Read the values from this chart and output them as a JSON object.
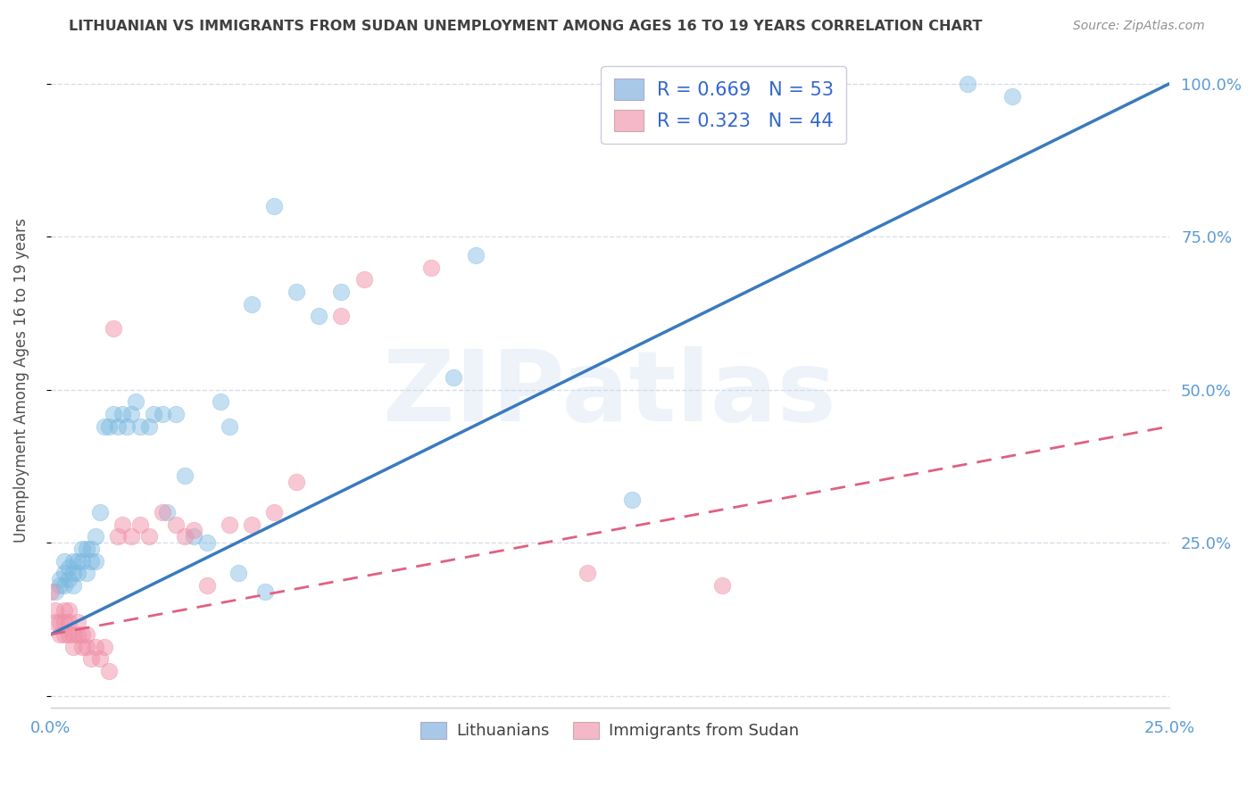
{
  "title": "LITHUANIAN VS IMMIGRANTS FROM SUDAN UNEMPLOYMENT AMONG AGES 16 TO 19 YEARS CORRELATION CHART",
  "source": "Source: ZipAtlas.com",
  "ylabel": "Unemployment Among Ages 16 to 19 years",
  "watermark": "ZIPatlas",
  "xlim": [
    0.0,
    0.25
  ],
  "ylim": [
    -0.02,
    1.05
  ],
  "xticks": [
    0.0,
    0.05,
    0.1,
    0.15,
    0.2,
    0.25
  ],
  "xticklabels": [
    "0.0%",
    "",
    "",
    "",
    "",
    "25.0%"
  ],
  "yticks": [
    0.0,
    0.25,
    0.5,
    0.75,
    1.0
  ],
  "yticklabels_right": [
    "",
    "25.0%",
    "50.0%",
    "75.0%",
    "100.0%"
  ],
  "legend1_label": "R = 0.669   N = 53",
  "legend2_label": "R = 0.323   N = 44",
  "blue_fill_color": "#a8c8e8",
  "pink_fill_color": "#f4b8c8",
  "blue_scatter_color": "#7ab8e0",
  "pink_scatter_color": "#f090a8",
  "trendline_blue": "#3a7abf",
  "trendline_pink": "#e06080",
  "legend_text_color": "#3366cc",
  "axis_color": "#5b9bd5",
  "grid_color": "#d8dde8",
  "title_color": "#404040",
  "source_color": "#909090",
  "right_tick_color": "#5b9bd5",
  "blue_scatter_x": [
    0.001,
    0.002,
    0.002,
    0.003,
    0.003,
    0.003,
    0.004,
    0.004,
    0.005,
    0.005,
    0.005,
    0.006,
    0.006,
    0.007,
    0.007,
    0.008,
    0.008,
    0.009,
    0.009,
    0.01,
    0.01,
    0.011,
    0.012,
    0.013,
    0.014,
    0.015,
    0.016,
    0.017,
    0.018,
    0.019,
    0.02,
    0.022,
    0.023,
    0.025,
    0.026,
    0.028,
    0.03,
    0.032,
    0.035,
    0.038,
    0.04,
    0.042,
    0.045,
    0.048,
    0.05,
    0.055,
    0.06,
    0.065,
    0.09,
    0.095,
    0.13,
    0.205,
    0.215
  ],
  "blue_scatter_y": [
    0.17,
    0.18,
    0.19,
    0.18,
    0.2,
    0.22,
    0.19,
    0.21,
    0.18,
    0.2,
    0.22,
    0.2,
    0.22,
    0.22,
    0.24,
    0.2,
    0.24,
    0.22,
    0.24,
    0.22,
    0.26,
    0.3,
    0.44,
    0.44,
    0.46,
    0.44,
    0.46,
    0.44,
    0.46,
    0.48,
    0.44,
    0.44,
    0.46,
    0.46,
    0.3,
    0.46,
    0.36,
    0.26,
    0.25,
    0.48,
    0.44,
    0.2,
    0.64,
    0.17,
    0.8,
    0.66,
    0.62,
    0.66,
    0.52,
    0.72,
    0.32,
    1.0,
    0.98
  ],
  "pink_scatter_x": [
    0.0,
    0.001,
    0.001,
    0.002,
    0.002,
    0.003,
    0.003,
    0.003,
    0.004,
    0.004,
    0.004,
    0.005,
    0.005,
    0.006,
    0.006,
    0.007,
    0.007,
    0.008,
    0.008,
    0.009,
    0.01,
    0.011,
    0.012,
    0.013,
    0.014,
    0.015,
    0.016,
    0.018,
    0.02,
    0.022,
    0.025,
    0.028,
    0.03,
    0.032,
    0.035,
    0.04,
    0.045,
    0.05,
    0.055,
    0.065,
    0.07,
    0.085,
    0.12,
    0.15
  ],
  "pink_scatter_y": [
    0.17,
    0.14,
    0.12,
    0.1,
    0.12,
    0.1,
    0.12,
    0.14,
    0.1,
    0.12,
    0.14,
    0.08,
    0.1,
    0.1,
    0.12,
    0.1,
    0.08,
    0.08,
    0.1,
    0.06,
    0.08,
    0.06,
    0.08,
    0.04,
    0.6,
    0.26,
    0.28,
    0.26,
    0.28,
    0.26,
    0.3,
    0.28,
    0.26,
    0.27,
    0.18,
    0.28,
    0.28,
    0.3,
    0.35,
    0.62,
    0.68,
    0.7,
    0.2,
    0.18
  ],
  "blue_trend_x": [
    0.0,
    0.25
  ],
  "blue_trend_y": [
    0.1,
    1.0
  ],
  "pink_trend_x": [
    0.0,
    0.25
  ],
  "pink_trend_y": [
    0.1,
    0.44
  ]
}
